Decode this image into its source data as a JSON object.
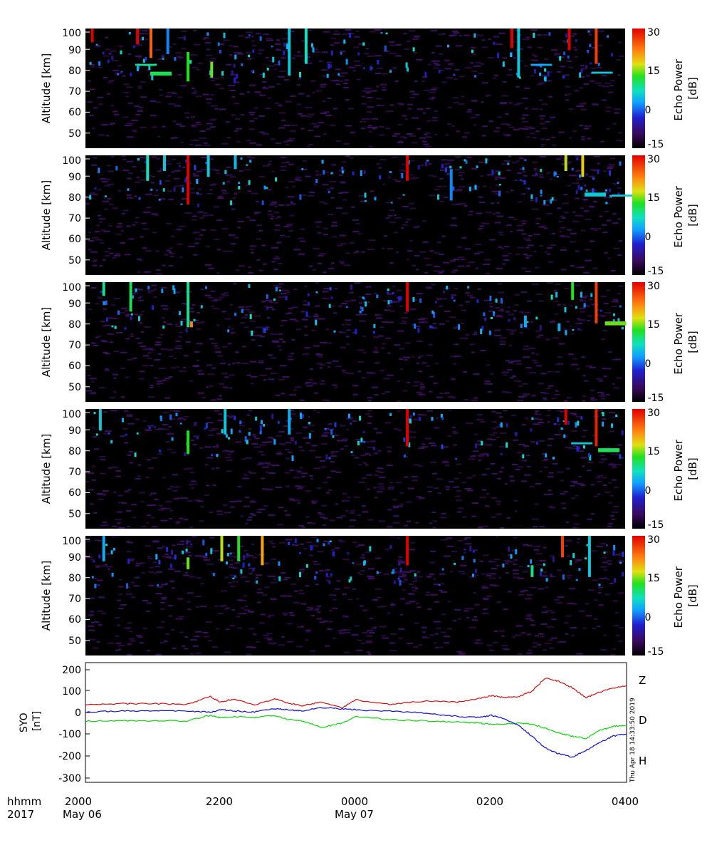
{
  "echo_panels": {
    "ylabel": "Altitude [km]",
    "cbar_label_line1": "Echo Power",
    "cbar_label_line2": "[dB]",
    "yticks": [
      "50",
      "60",
      "70",
      "80",
      "90",
      "100"
    ],
    "cbar_ticks": [
      "30",
      "15",
      "0",
      "-15"
    ]
  },
  "magnetometer": {
    "ylabel_line1": "SYO",
    "ylabel_line2": "[nT]",
    "yticks": [
      "200",
      "100",
      "0",
      "-100",
      "-200",
      "-300"
    ],
    "timestamp": "Thu Apr 18 14:33:50 2019",
    "legend": {
      "z": "Z",
      "d": "D",
      "h": "H"
    }
  },
  "time_axis": {
    "row1_label": "hhmm",
    "row2_label": "2017",
    "ticks": [
      "2000",
      "2200",
      "0000",
      "0200",
      "0400"
    ],
    "dates": [
      "May 06",
      "May 07"
    ]
  },
  "colors": {
    "z_series": "#d01010",
    "d_series": "#10d010",
    "h_series": "#1010d0",
    "plot_background": "#000000"
  },
  "chart_data": [
    {
      "type": "heatmap",
      "panel": 1,
      "ylabel": "Altitude [km]",
      "ylim": [
        42,
        103
      ],
      "x_range": [
        "2017-05-06 20:00",
        "2017-05-07 04:00"
      ],
      "colorbar": {
        "label": "Echo Power [dB]",
        "range": [
          -15,
          30
        ],
        "ticks": [
          30,
          15,
          0,
          -15
        ]
      },
      "echoes": [
        {
          "t": 0.75,
          "alt": [
            95,
            103
          ],
          "db": 30
        },
        {
          "t": 0.08,
          "alt": [
            96,
            103
          ],
          "db": 30
        },
        {
          "t": 0.95,
          "alt": [
            88,
            103
          ],
          "db": 24
        },
        {
          "t": 0.96,
          "alt": [
            79,
            81
          ],
          "db": 10
        },
        {
          "t": 0.74,
          "alt": [
            84,
            85
          ],
          "db": 8
        },
        {
          "t": 1.5,
          "alt": [
            76,
            91
          ],
          "db": 12
        },
        {
          "t": 1.2,
          "alt": [
            90,
            103
          ],
          "db": 0
        },
        {
          "t": 1.85,
          "alt": [
            78,
            86
          ],
          "db": 14
        },
        {
          "t": 3.0,
          "alt": [
            79,
            103
          ],
          "db": 4
        },
        {
          "t": 3.25,
          "alt": [
            85,
            103
          ],
          "db": 6
        },
        {
          "t": 6.3,
          "alt": [
            93,
            103
          ],
          "db": 30
        },
        {
          "t": 7.15,
          "alt": [
            92,
            103
          ],
          "db": 30
        },
        {
          "t": 7.55,
          "alt": [
            85,
            103
          ],
          "db": 26
        },
        {
          "t": 7.5,
          "alt": [
            80,
            81
          ],
          "db": 4
        },
        {
          "t": 6.4,
          "alt": [
            78,
            103
          ],
          "db": 4
        },
        {
          "t": 6.6,
          "alt": [
            84,
            85
          ],
          "db": 2
        }
      ]
    },
    {
      "type": "heatmap",
      "panel": 2,
      "ylabel": "Altitude [km]",
      "ylim": [
        42,
        103
      ],
      "x_range": [
        "2017-05-06 20:00",
        "2017-05-07 04:00"
      ],
      "colorbar": {
        "label": "Echo Power [dB]",
        "range": [
          -15,
          30
        ],
        "ticks": [
          30,
          15,
          0,
          -15
        ]
      },
      "echoes": [
        {
          "t": 1.5,
          "alt": [
            78,
            103
          ],
          "db": 30
        },
        {
          "t": 0.9,
          "alt": [
            90,
            103
          ],
          "db": 6
        },
        {
          "t": 1.15,
          "alt": [
            95,
            103
          ],
          "db": 4
        },
        {
          "t": 1.8,
          "alt": [
            92,
            103
          ],
          "db": 4
        },
        {
          "t": 2.2,
          "alt": [
            96,
            103
          ],
          "db": 3
        },
        {
          "t": 4.75,
          "alt": [
            90,
            103
          ],
          "db": 30
        },
        {
          "t": 7.1,
          "alt": [
            95,
            103
          ],
          "db": 16
        },
        {
          "t": 7.35,
          "alt": [
            92,
            103
          ],
          "db": 18
        },
        {
          "t": 7.4,
          "alt": [
            82,
            84
          ],
          "db": 4
        },
        {
          "t": 7.8,
          "alt": [
            82,
            83
          ],
          "db": 4
        },
        {
          "t": 5.4,
          "alt": [
            80,
            96
          ],
          "db": 0
        }
      ]
    },
    {
      "type": "heatmap",
      "panel": 3,
      "ylabel": "Altitude [km]",
      "ylim": [
        42,
        103
      ],
      "x_range": [
        "2017-05-06 20:00",
        "2017-05-07 04:00"
      ],
      "colorbar": {
        "label": "Echo Power [dB]",
        "range": [
          -15,
          30
        ],
        "ticks": [
          30,
          15,
          0,
          -15
        ]
      },
      "echoes": [
        {
          "t": 0.25,
          "alt": [
            96,
            103
          ],
          "db": 8
        },
        {
          "t": 0.65,
          "alt": [
            88,
            103
          ],
          "db": 10
        },
        {
          "t": 1.5,
          "alt": [
            80,
            103
          ],
          "db": 8
        },
        {
          "t": 1.55,
          "alt": [
            80,
            83
          ],
          "db": 22
        },
        {
          "t": 4.75,
          "alt": [
            88,
            103
          ],
          "db": 30
        },
        {
          "t": 7.2,
          "alt": [
            94,
            103
          ],
          "db": 12
        },
        {
          "t": 7.55,
          "alt": [
            82,
            103
          ],
          "db": 26
        },
        {
          "t": 7.7,
          "alt": [
            81,
            83
          ],
          "db": 14
        },
        {
          "t": 7.0,
          "alt": [
            78,
            82
          ],
          "db": 2
        },
        {
          "t": 6.5,
          "alt": [
            80,
            86
          ],
          "db": 2
        }
      ]
    },
    {
      "type": "heatmap",
      "panel": 4,
      "ylabel": "Altitude [km]",
      "ylim": [
        42,
        103
      ],
      "x_range": [
        "2017-05-06 20:00",
        "2017-05-07 04:00"
      ],
      "colorbar": {
        "label": "Echo Power [dB]",
        "range": [
          -15,
          30
        ],
        "ticks": [
          30,
          15,
          0,
          -15
        ]
      },
      "echoes": [
        {
          "t": 0.2,
          "alt": [
            92,
            103
          ],
          "db": 4
        },
        {
          "t": 1.5,
          "alt": [
            80,
            92
          ],
          "db": 12
        },
        {
          "t": 2.05,
          "alt": [
            90,
            103
          ],
          "db": 4
        },
        {
          "t": 3.0,
          "alt": [
            90,
            103
          ],
          "db": 2
        },
        {
          "t": 4.75,
          "alt": [
            84,
            103
          ],
          "db": 30
        },
        {
          "t": 7.1,
          "alt": [
            95,
            103
          ],
          "db": 30
        },
        {
          "t": 7.55,
          "alt": [
            84,
            103
          ],
          "db": 28
        },
        {
          "t": 7.6,
          "alt": [
            81,
            83
          ],
          "db": 10
        },
        {
          "t": 7.2,
          "alt": [
            85,
            86
          ],
          "db": 4
        }
      ]
    },
    {
      "type": "heatmap",
      "panel": 5,
      "ylabel": "Altitude [km]",
      "ylim": [
        42,
        103
      ],
      "x_range": [
        "2017-05-06 20:00",
        "2017-05-07 04:00"
      ],
      "colorbar": {
        "label": "Echo Power [dB]",
        "range": [
          -15,
          30
        ],
        "ticks": [
          30,
          15,
          0,
          -15
        ]
      },
      "echoes": [
        {
          "t": 0.25,
          "alt": [
            90,
            103
          ],
          "db": 2
        },
        {
          "t": 1.5,
          "alt": [
            86,
            92
          ],
          "db": 14
        },
        {
          "t": 2.0,
          "alt": [
            90,
            103
          ],
          "db": 16
        },
        {
          "t": 2.25,
          "alt": [
            90,
            103
          ],
          "db": 12
        },
        {
          "t": 2.6,
          "alt": [
            88,
            103
          ],
          "db": 20
        },
        {
          "t": 4.75,
          "alt": [
            88,
            103
          ],
          "db": 30
        },
        {
          "t": 7.05,
          "alt": [
            92,
            103
          ],
          "db": 26
        },
        {
          "t": 7.45,
          "alt": [
            82,
            103
          ],
          "db": 4
        },
        {
          "t": 6.6,
          "alt": [
            82,
            88
          ],
          "db": 8
        }
      ]
    },
    {
      "type": "line",
      "panel": 6,
      "ylabel": "SYO [nT]",
      "ylim": [
        -320,
        225
      ],
      "x_range": [
        "2017-05-06 20:00",
        "2017-05-07 04:00"
      ],
      "x_hours_since_2000": [
        0,
        0.5,
        1.0,
        1.5,
        1.85,
        2.0,
        2.2,
        2.5,
        2.8,
        3.0,
        3.2,
        3.5,
        3.8,
        4.0,
        4.5,
        5.0,
        5.5,
        5.8,
        6.0,
        6.2,
        6.4,
        6.6,
        6.8,
        7.0,
        7.2,
        7.4,
        7.6,
        7.8,
        8.0
      ],
      "series": [
        {
          "name": "Z",
          "values": [
            35,
            38,
            38,
            35,
            70,
            45,
            60,
            30,
            60,
            40,
            30,
            45,
            20,
            55,
            35,
            50,
            45,
            60,
            75,
            65,
            70,
            95,
            155,
            140,
            110,
            65,
            90,
            110,
            120
          ]
        },
        {
          "name": "D",
          "values": [
            -42,
            -38,
            -40,
            -40,
            -15,
            -25,
            -20,
            -25,
            -15,
            -35,
            -40,
            -70,
            -50,
            -20,
            -35,
            -40,
            -45,
            -50,
            -55,
            -55,
            -52,
            -55,
            -75,
            -95,
            -110,
            -120,
            -85,
            -65,
            -60
          ]
        },
        {
          "name": "H",
          "values": [
            0,
            5,
            5,
            5,
            0,
            10,
            5,
            0,
            15,
            10,
            5,
            20,
            15,
            10,
            5,
            -5,
            -20,
            -25,
            -15,
            -30,
            -60,
            -110,
            -165,
            -190,
            -205,
            -175,
            -140,
            -110,
            -100
          ]
        }
      ]
    }
  ]
}
